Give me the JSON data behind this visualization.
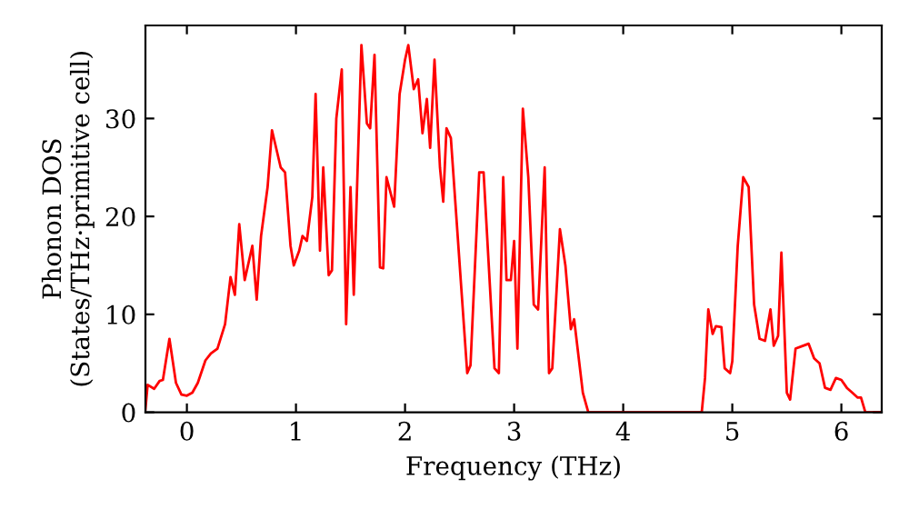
{
  "chart_data": {
    "type": "line",
    "xlabel": "Frequency (THz)",
    "ylabel": "Phonon DOS\n(States/THz·primitive cell)",
    "xlim": [
      -0.38,
      6.37
    ],
    "ylim": [
      0,
      39.5
    ],
    "xticks": [
      0,
      1,
      2,
      3,
      4,
      5,
      6
    ],
    "yticks": [
      0,
      10,
      20,
      30
    ],
    "grid": false,
    "legend": false,
    "marker": "none",
    "line_style": "solid",
    "series": [
      {
        "color": "#ff0000",
        "x": [
          -0.38,
          -0.36,
          -0.3,
          -0.25,
          -0.22,
          -0.16,
          -0.1,
          -0.05,
          0.0,
          0.05,
          0.1,
          0.17,
          0.22,
          0.28,
          0.35,
          0.4,
          0.44,
          0.48,
          0.53,
          0.6,
          0.64,
          0.68,
          0.74,
          0.78,
          0.86,
          0.9,
          0.95,
          0.98,
          1.03,
          1.06,
          1.1,
          1.15,
          1.18,
          1.22,
          1.25,
          1.3,
          1.33,
          1.37,
          1.42,
          1.46,
          1.5,
          1.53,
          1.6,
          1.65,
          1.68,
          1.72,
          1.77,
          1.8,
          1.83,
          1.9,
          1.95,
          2.0,
          2.03,
          2.08,
          2.12,
          2.16,
          2.2,
          2.23,
          2.27,
          2.32,
          2.35,
          2.38,
          2.42,
          2.47,
          2.52,
          2.57,
          2.6,
          2.68,
          2.72,
          2.82,
          2.86,
          2.9,
          2.93,
          2.97,
          3.0,
          3.03,
          3.08,
          3.13,
          3.18,
          3.22,
          3.28,
          3.3,
          3.32,
          3.35,
          3.42,
          3.47,
          3.52,
          3.55,
          3.63,
          3.68,
          4.72,
          4.75,
          4.78,
          4.82,
          4.85,
          4.9,
          4.93,
          4.98,
          5.0,
          5.05,
          5.1,
          5.15,
          5.2,
          5.25,
          5.3,
          5.35,
          5.38,
          5.42,
          5.45,
          5.5,
          5.53,
          5.58,
          5.65,
          5.7,
          5.75,
          5.8,
          5.85,
          5.9,
          5.95,
          6.0,
          6.05,
          6.1,
          6.15,
          6.18,
          6.22,
          6.37
        ],
        "values": [
          0.3,
          2.8,
          2.4,
          3.2,
          3.3,
          7.5,
          3.0,
          1.8,
          1.7,
          2.0,
          3.0,
          5.3,
          6.0,
          6.5,
          9.0,
          13.8,
          12.0,
          19.2,
          13.5,
          17.0,
          11.5,
          18.0,
          23.0,
          28.8,
          25.0,
          24.5,
          17.0,
          15.0,
          16.5,
          18.0,
          17.5,
          22.0,
          32.5,
          16.5,
          25.0,
          14.0,
          14.5,
          30.0,
          35.0,
          9.0,
          23.0,
          12.0,
          37.5,
          29.5,
          29.0,
          36.5,
          14.8,
          14.7,
          24.0,
          21.0,
          32.5,
          36.0,
          37.5,
          33.0,
          34.0,
          28.5,
          32.0,
          27.0,
          36.0,
          25.0,
          21.5,
          29.0,
          28.0,
          20.0,
          12.0,
          4.0,
          4.8,
          24.5,
          24.5,
          4.5,
          4.0,
          24.0,
          13.5,
          13.5,
          17.5,
          6.5,
          31.0,
          24.0,
          11.0,
          10.5,
          25.0,
          14.0,
          4.0,
          4.5,
          18.7,
          15.0,
          8.5,
          9.5,
          2.0,
          0.0,
          0.0,
          3.5,
          10.5,
          8.0,
          8.8,
          8.7,
          4.5,
          4.0,
          5.2,
          17.0,
          24.0,
          23.0,
          11.0,
          7.5,
          7.3,
          10.5,
          6.8,
          7.8,
          16.3,
          2.0,
          1.3,
          6.5,
          6.8,
          7.0,
          5.5,
          5.0,
          2.5,
          2.3,
          3.5,
          3.3,
          2.5,
          2.0,
          1.5,
          1.5,
          0.0,
          0.0
        ]
      }
    ]
  }
}
